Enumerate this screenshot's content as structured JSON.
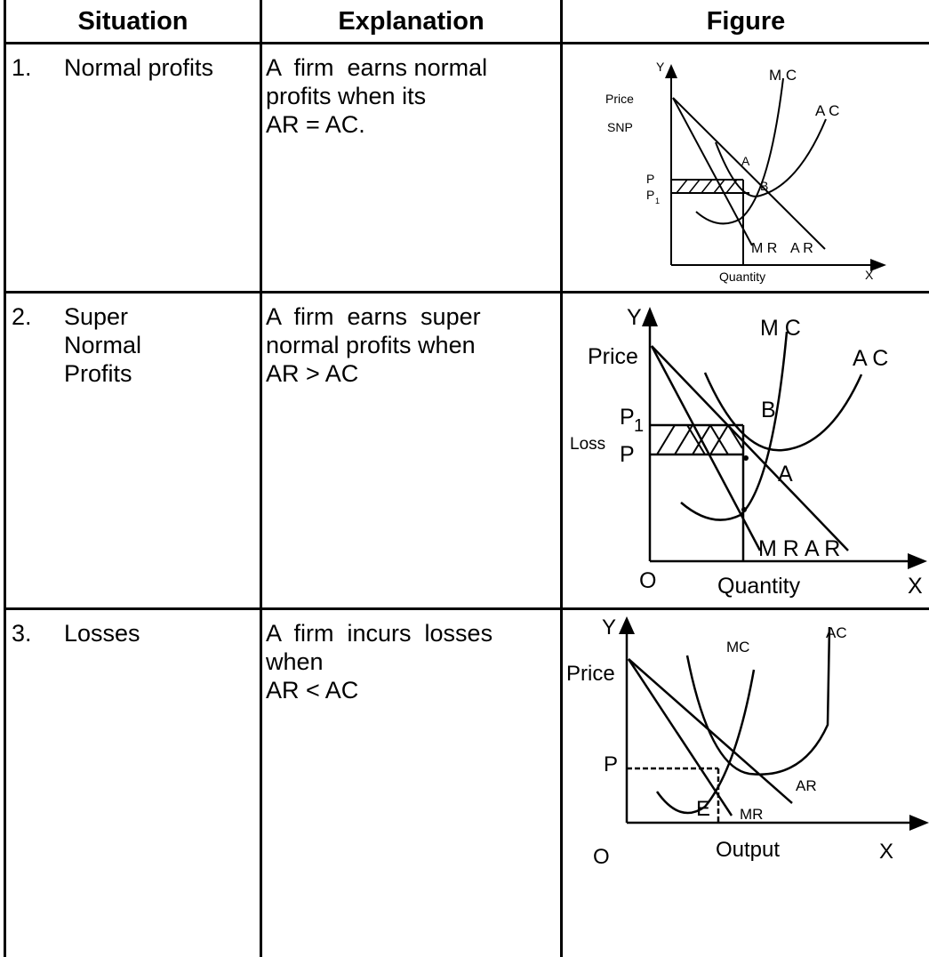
{
  "table": {
    "headers": {
      "situation": "Situation",
      "explanation": "Explanation",
      "figure": "Figure"
    },
    "rows": [
      {
        "number": "1.",
        "situation": [
          "Normal profits"
        ],
        "explanation": [
          "A  firm  earns normal",
          "profits when its",
          "AR = AC."
        ],
        "figure": {
          "axis_y": "Y",
          "axis_x": "X",
          "price": "Price",
          "snp": "SNP",
          "p": "P",
          "p1": "P",
          "p1_sub": "1",
          "mc": "M C",
          "ac": "A C",
          "a": "A",
          "b": "B",
          "mr": "M R",
          "ar": "A R",
          "quantity": "Quantity"
        }
      },
      {
        "number": "2.",
        "situation": [
          "Super",
          "Normal",
          "Profits"
        ],
        "explanation": [
          "A  firm  earns  super",
          "normal profits when",
          "AR > AC"
        ],
        "figure": {
          "axis_y": "Y",
          "axis_x": "X",
          "origin": "O",
          "price": "Price",
          "p1": "P",
          "p1_sub": "1",
          "loss": "Loss",
          "p": "P",
          "mc": "M C",
          "ac": "A C",
          "a": "A",
          "b": "B",
          "mr": "M R",
          "ar": "A R",
          "quantity": "Quantity"
        }
      },
      {
        "number": "3.",
        "situation": [
          "Losses"
        ],
        "explanation": [
          "A  firm  incurs  losses",
          "when",
          "AR < AC"
        ],
        "figure": {
          "axis_y": "Y",
          "axis_x": "X",
          "origin": "O",
          "price": "Price",
          "p": "P",
          "e": "E",
          "mc": "MC",
          "ac": "AC",
          "ar": "AR",
          "mr": "MR",
          "output": "Output"
        }
      }
    ]
  }
}
